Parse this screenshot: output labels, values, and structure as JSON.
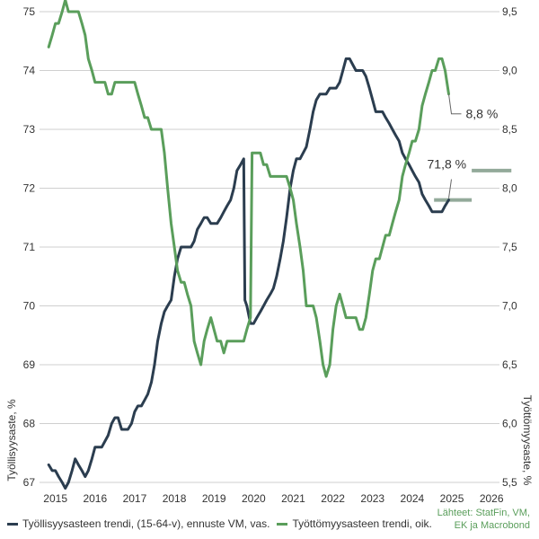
{
  "chart_data": {
    "type": "line",
    "x_ticks": [
      "2015",
      "2016",
      "2017",
      "2018",
      "2019",
      "2020",
      "2021",
      "2022",
      "2023",
      "2024",
      "2025",
      "2026"
    ],
    "x_range": [
      2014.6,
      2026.2
    ],
    "y_left": {
      "label": "Työllisyysaste, %",
      "range": [
        67,
        75
      ],
      "ticks": [
        "67",
        "68",
        "69",
        "70",
        "71",
        "72",
        "73",
        "74",
        "75"
      ]
    },
    "y_right": {
      "label": "Työttömyysaste, %",
      "range": [
        5.5,
        9.5
      ],
      "ticks": [
        "5,5",
        "6,0",
        "6,5",
        "7,0",
        "7,5",
        "8,0",
        "8,5",
        "9,0",
        "9,5"
      ]
    },
    "grid": true,
    "legend_placement": "bottom",
    "series": [
      {
        "name": "Työllisyysasteen trendi, (15-64-v), ennuste VM, vas.",
        "axis": "left",
        "color": "#2b3d4f",
        "points": [
          [
            2014.83,
            67.3
          ],
          [
            2014.92,
            67.2
          ],
          [
            2015.0,
            67.2
          ],
          [
            2015.08,
            67.1
          ],
          [
            2015.17,
            67.0
          ],
          [
            2015.25,
            66.9
          ],
          [
            2015.33,
            67.0
          ],
          [
            2015.42,
            67.2
          ],
          [
            2015.5,
            67.4
          ],
          [
            2015.58,
            67.3
          ],
          [
            2015.67,
            67.2
          ],
          [
            2015.75,
            67.1
          ],
          [
            2015.83,
            67.2
          ],
          [
            2015.92,
            67.4
          ],
          [
            2016.0,
            67.6
          ],
          [
            2016.17,
            67.6
          ],
          [
            2016.33,
            67.8
          ],
          [
            2016.42,
            68.0
          ],
          [
            2016.5,
            68.1
          ],
          [
            2016.58,
            68.1
          ],
          [
            2016.67,
            67.9
          ],
          [
            2016.83,
            67.9
          ],
          [
            2016.92,
            68.0
          ],
          [
            2017.0,
            68.2
          ],
          [
            2017.08,
            68.3
          ],
          [
            2017.17,
            68.3
          ],
          [
            2017.25,
            68.4
          ],
          [
            2017.33,
            68.5
          ],
          [
            2017.42,
            68.7
          ],
          [
            2017.5,
            69.0
          ],
          [
            2017.58,
            69.4
          ],
          [
            2017.67,
            69.7
          ],
          [
            2017.75,
            69.9
          ],
          [
            2017.83,
            70.0
          ],
          [
            2017.92,
            70.1
          ],
          [
            2018.0,
            70.5
          ],
          [
            2018.08,
            70.8
          ],
          [
            2018.17,
            71.0
          ],
          [
            2018.25,
            71.0
          ],
          [
            2018.42,
            71.0
          ],
          [
            2018.5,
            71.1
          ],
          [
            2018.58,
            71.3
          ],
          [
            2018.67,
            71.4
          ],
          [
            2018.75,
            71.5
          ],
          [
            2018.83,
            71.5
          ],
          [
            2018.92,
            71.4
          ],
          [
            2019.08,
            71.4
          ],
          [
            2019.17,
            71.5
          ],
          [
            2019.25,
            71.6
          ],
          [
            2019.33,
            71.7
          ],
          [
            2019.42,
            71.8
          ],
          [
            2019.5,
            72.0
          ],
          [
            2019.58,
            72.3
          ],
          [
            2019.67,
            72.4
          ],
          [
            2019.75,
            72.5
          ],
          [
            2019.78,
            70.1
          ],
          [
            2019.83,
            70.0
          ],
          [
            2019.92,
            69.7
          ],
          [
            2020.0,
            69.7
          ],
          [
            2020.08,
            69.8
          ],
          [
            2020.17,
            69.9
          ],
          [
            2020.25,
            70.0
          ],
          [
            2020.33,
            70.1
          ],
          [
            2020.42,
            70.2
          ],
          [
            2020.5,
            70.3
          ],
          [
            2020.58,
            70.5
          ],
          [
            2020.67,
            70.8
          ],
          [
            2020.75,
            71.1
          ],
          [
            2020.83,
            71.5
          ],
          [
            2020.92,
            72.0
          ],
          [
            2021.0,
            72.3
          ],
          [
            2021.08,
            72.5
          ],
          [
            2021.17,
            72.5
          ],
          [
            2021.25,
            72.6
          ],
          [
            2021.33,
            72.7
          ],
          [
            2021.42,
            73.0
          ],
          [
            2021.5,
            73.3
          ],
          [
            2021.58,
            73.5
          ],
          [
            2021.67,
            73.6
          ],
          [
            2021.83,
            73.6
          ],
          [
            2021.92,
            73.7
          ],
          [
            2022.0,
            73.7
          ],
          [
            2022.08,
            73.7
          ],
          [
            2022.17,
            73.8
          ],
          [
            2022.25,
            74.0
          ],
          [
            2022.33,
            74.2
          ],
          [
            2022.42,
            74.2
          ],
          [
            2022.5,
            74.1
          ],
          [
            2022.58,
            74.0
          ],
          [
            2022.75,
            74.0
          ],
          [
            2022.83,
            73.9
          ],
          [
            2022.92,
            73.7
          ],
          [
            2023.0,
            73.5
          ],
          [
            2023.08,
            73.3
          ],
          [
            2023.25,
            73.3
          ],
          [
            2023.33,
            73.2
          ],
          [
            2023.42,
            73.1
          ],
          [
            2023.5,
            73.0
          ],
          [
            2023.58,
            72.9
          ],
          [
            2023.67,
            72.8
          ],
          [
            2023.75,
            72.6
          ],
          [
            2023.83,
            72.5
          ],
          [
            2023.92,
            72.4
          ],
          [
            2024.0,
            72.3
          ],
          [
            2024.08,
            72.2
          ],
          [
            2024.17,
            72.1
          ],
          [
            2024.25,
            71.9
          ],
          [
            2024.33,
            71.8
          ],
          [
            2024.42,
            71.7
          ],
          [
            2024.5,
            71.6
          ],
          [
            2024.75,
            71.6
          ],
          [
            2024.83,
            71.7
          ],
          [
            2024.92,
            71.8
          ]
        ],
        "forecast": {
          "x": [
            2024.55,
            2025.5
          ],
          "value": 71.8
        }
      },
      {
        "name": "Työttömyysasteen trendi, oik.",
        "axis": "right",
        "color": "#5a9e5b",
        "points": [
          [
            2014.83,
            9.2
          ],
          [
            2014.92,
            9.3
          ],
          [
            2015.0,
            9.4
          ],
          [
            2015.08,
            9.4
          ],
          [
            2015.17,
            9.5
          ],
          [
            2015.25,
            9.6
          ],
          [
            2015.33,
            9.5
          ],
          [
            2015.42,
            9.5
          ],
          [
            2015.5,
            9.5
          ],
          [
            2015.58,
            9.5
          ],
          [
            2015.67,
            9.4
          ],
          [
            2015.75,
            9.3
          ],
          [
            2015.83,
            9.1
          ],
          [
            2015.92,
            9.0
          ],
          [
            2016.0,
            8.9
          ],
          [
            2016.17,
            8.9
          ],
          [
            2016.25,
            8.9
          ],
          [
            2016.33,
            8.8
          ],
          [
            2016.42,
            8.8
          ],
          [
            2016.5,
            8.9
          ],
          [
            2016.75,
            8.9
          ],
          [
            2016.92,
            8.9
          ],
          [
            2017.0,
            8.9
          ],
          [
            2017.08,
            8.8
          ],
          [
            2017.17,
            8.7
          ],
          [
            2017.25,
            8.6
          ],
          [
            2017.33,
            8.6
          ],
          [
            2017.42,
            8.5
          ],
          [
            2017.58,
            8.5
          ],
          [
            2017.67,
            8.5
          ],
          [
            2017.75,
            8.3
          ],
          [
            2017.83,
            8.0
          ],
          [
            2017.92,
            7.7
          ],
          [
            2018.0,
            7.5
          ],
          [
            2018.08,
            7.3
          ],
          [
            2018.17,
            7.2
          ],
          [
            2018.25,
            7.2
          ],
          [
            2018.33,
            7.1
          ],
          [
            2018.42,
            7.0
          ],
          [
            2018.5,
            6.7
          ],
          [
            2018.58,
            6.6
          ],
          [
            2018.67,
            6.5
          ],
          [
            2018.75,
            6.7
          ],
          [
            2018.83,
            6.8
          ],
          [
            2018.92,
            6.9
          ],
          [
            2019.0,
            6.8
          ],
          [
            2019.08,
            6.7
          ],
          [
            2019.17,
            6.7
          ],
          [
            2019.25,
            6.6
          ],
          [
            2019.33,
            6.7
          ],
          [
            2019.42,
            6.7
          ],
          [
            2019.5,
            6.7
          ],
          [
            2019.58,
            6.7
          ],
          [
            2019.67,
            6.7
          ],
          [
            2019.75,
            6.7
          ],
          [
            2019.83,
            6.8
          ],
          [
            2019.92,
            6.9
          ],
          [
            2019.96,
            8.3
          ],
          [
            2020.0,
            8.3
          ],
          [
            2020.17,
            8.3
          ],
          [
            2020.25,
            8.2
          ],
          [
            2020.33,
            8.2
          ],
          [
            2020.42,
            8.1
          ],
          [
            2020.58,
            8.1
          ],
          [
            2020.75,
            8.1
          ],
          [
            2020.83,
            8.1
          ],
          [
            2020.92,
            8.0
          ],
          [
            2021.0,
            7.9
          ],
          [
            2021.08,
            7.7
          ],
          [
            2021.17,
            7.5
          ],
          [
            2021.25,
            7.3
          ],
          [
            2021.33,
            7.0
          ],
          [
            2021.42,
            7.0
          ],
          [
            2021.5,
            7.0
          ],
          [
            2021.58,
            6.9
          ],
          [
            2021.67,
            6.7
          ],
          [
            2021.75,
            6.5
          ],
          [
            2021.83,
            6.4
          ],
          [
            2021.92,
            6.5
          ],
          [
            2022.0,
            6.8
          ],
          [
            2022.08,
            7.0
          ],
          [
            2022.17,
            7.1
          ],
          [
            2022.25,
            7.0
          ],
          [
            2022.33,
            6.9
          ],
          [
            2022.42,
            6.9
          ],
          [
            2022.58,
            6.9
          ],
          [
            2022.67,
            6.8
          ],
          [
            2022.75,
            6.8
          ],
          [
            2022.83,
            6.9
          ],
          [
            2022.92,
            7.1
          ],
          [
            2023.0,
            7.3
          ],
          [
            2023.08,
            7.4
          ],
          [
            2023.17,
            7.4
          ],
          [
            2023.25,
            7.5
          ],
          [
            2023.33,
            7.6
          ],
          [
            2023.42,
            7.6
          ],
          [
            2023.5,
            7.7
          ],
          [
            2023.58,
            7.8
          ],
          [
            2023.67,
            7.9
          ],
          [
            2023.75,
            8.1
          ],
          [
            2023.83,
            8.2
          ],
          [
            2023.92,
            8.3
          ],
          [
            2024.0,
            8.4
          ],
          [
            2024.08,
            8.4
          ],
          [
            2024.17,
            8.5
          ],
          [
            2024.25,
            8.7
          ],
          [
            2024.33,
            8.8
          ],
          [
            2024.42,
            8.9
          ],
          [
            2024.5,
            9.0
          ],
          [
            2024.58,
            9.0
          ],
          [
            2024.67,
            9.1
          ],
          [
            2024.75,
            9.1
          ],
          [
            2024.83,
            9.0
          ],
          [
            2024.92,
            8.8
          ]
        ],
        "forecast": {
          "x": [
            2025.5,
            2026.5
          ],
          "value": 8.15
        }
      }
    ],
    "annotations": [
      {
        "text": "8,8 %",
        "series": 1,
        "x": 2024.92,
        "y": 8.8
      },
      {
        "text": "71,8 %",
        "series": 0,
        "x": 2024.92,
        "y": 71.8
      }
    ]
  },
  "source": [
    "Lähteet: StatFin, VM,",
    "EK ja Macrobond"
  ]
}
